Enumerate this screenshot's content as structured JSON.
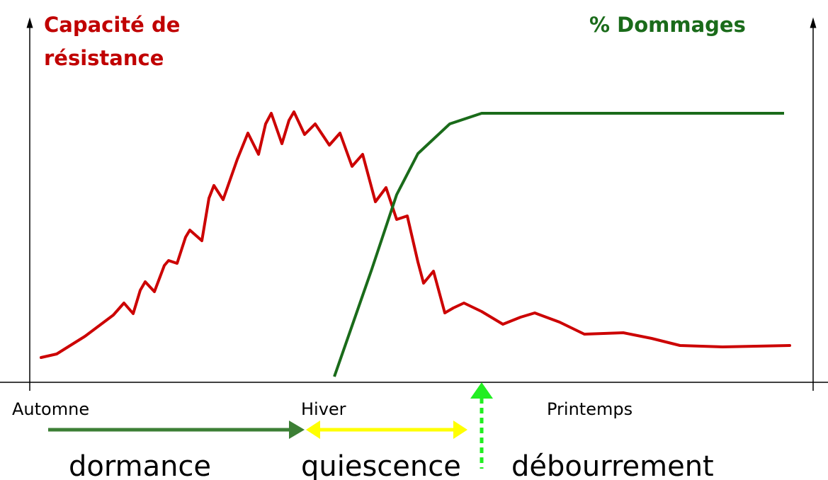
{
  "axes": {
    "left_label": [
      "Capacité de",
      "résistance"
    ],
    "right_label": "% Dommages"
  },
  "seasons": [
    "Automne",
    "Hiver",
    "Printemps"
  ],
  "phases": [
    "dormance",
    "quiescence",
    "débourrement"
  ]
}
